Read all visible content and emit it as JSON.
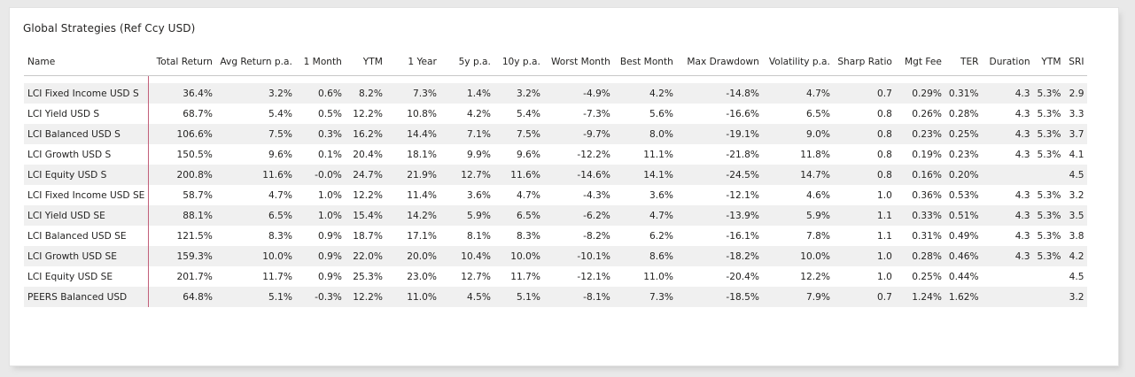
{
  "table": {
    "title": "Global Strategies (Ref Ccy USD)",
    "columns": [
      "Name",
      "Total Return",
      "Avg Return p.a.",
      "1 Month",
      "YTM",
      "1 Year",
      "5y p.a.",
      "10y p.a.",
      "Worst Month",
      "Best Month",
      "Max Drawdown",
      "Volatility p.a.",
      "Sharp Ratio",
      "Mgt Fee",
      "TER",
      "Duration",
      "YTM",
      "SRI"
    ],
    "rows": [
      [
        "LCI Fixed Income USD S",
        "36.4%",
        "3.2%",
        "0.6%",
        "8.2%",
        "7.3%",
        "1.4%",
        "3.2%",
        "-4.9%",
        "4.2%",
        "-14.8%",
        "4.7%",
        "0.7",
        "0.29%",
        "0.31%",
        "4.3",
        "5.3%",
        "2.9"
      ],
      [
        "LCI Yield USD S",
        "68.7%",
        "5.4%",
        "0.5%",
        "12.2%",
        "10.8%",
        "4.2%",
        "5.4%",
        "-7.3%",
        "5.6%",
        "-16.6%",
        "6.5%",
        "0.8",
        "0.26%",
        "0.28%",
        "4.3",
        "5.3%",
        "3.3"
      ],
      [
        "LCI Balanced USD S",
        "106.6%",
        "7.5%",
        "0.3%",
        "16.2%",
        "14.4%",
        "7.1%",
        "7.5%",
        "-9.7%",
        "8.0%",
        "-19.1%",
        "9.0%",
        "0.8",
        "0.23%",
        "0.25%",
        "4.3",
        "5.3%",
        "3.7"
      ],
      [
        "LCI Growth USD S",
        "150.5%",
        "9.6%",
        "0.1%",
        "20.4%",
        "18.1%",
        "9.9%",
        "9.6%",
        "-12.2%",
        "11.1%",
        "-21.8%",
        "11.8%",
        "0.8",
        "0.19%",
        "0.23%",
        "4.3",
        "5.3%",
        "4.1"
      ],
      [
        "LCI Equity USD S",
        "200.8%",
        "11.6%",
        "-0.0%",
        "24.7%",
        "21.9%",
        "12.7%",
        "11.6%",
        "-14.6%",
        "14.1%",
        "-24.5%",
        "14.7%",
        "0.8",
        "0.16%",
        "0.20%",
        "",
        "",
        "4.5"
      ],
      [
        "LCI Fixed Income USD SE",
        "58.7%",
        "4.7%",
        "1.0%",
        "12.2%",
        "11.4%",
        "3.6%",
        "4.7%",
        "-4.3%",
        "3.6%",
        "-12.1%",
        "4.6%",
        "1.0",
        "0.36%",
        "0.53%",
        "4.3",
        "5.3%",
        "3.2"
      ],
      [
        "LCI Yield USD SE",
        "88.1%",
        "6.5%",
        "1.0%",
        "15.4%",
        "14.2%",
        "5.9%",
        "6.5%",
        "-6.2%",
        "4.7%",
        "-13.9%",
        "5.9%",
        "1.1",
        "0.33%",
        "0.51%",
        "4.3",
        "5.3%",
        "3.5"
      ],
      [
        "LCI Balanced USD SE",
        "121.5%",
        "8.3%",
        "0.9%",
        "18.7%",
        "17.1%",
        "8.1%",
        "8.3%",
        "-8.2%",
        "6.2%",
        "-16.1%",
        "7.8%",
        "1.1",
        "0.31%",
        "0.49%",
        "4.3",
        "5.3%",
        "3.8"
      ],
      [
        "LCI Growth USD SE",
        "159.3%",
        "10.0%",
        "0.9%",
        "22.0%",
        "20.0%",
        "10.4%",
        "10.0%",
        "-10.1%",
        "8.6%",
        "-18.2%",
        "10.0%",
        "1.0",
        "0.28%",
        "0.46%",
        "4.3",
        "5.3%",
        "4.2"
      ],
      [
        "LCI Equity USD SE",
        "201.7%",
        "11.7%",
        "0.9%",
        "25.3%",
        "23.0%",
        "12.7%",
        "11.7%",
        "-12.1%",
        "11.0%",
        "-20.4%",
        "12.2%",
        "1.0",
        "0.25%",
        "0.44%",
        "",
        "",
        "4.5"
      ],
      [
        "PEERS Balanced USD",
        "64.8%",
        "5.1%",
        "-0.3%",
        "12.2%",
        "11.0%",
        "4.5%",
        "5.1%",
        "-8.1%",
        "7.3%",
        "-18.5%",
        "7.9%",
        "0.7",
        "1.24%",
        "1.62%",
        "",
        "",
        "3.2"
      ]
    ]
  }
}
